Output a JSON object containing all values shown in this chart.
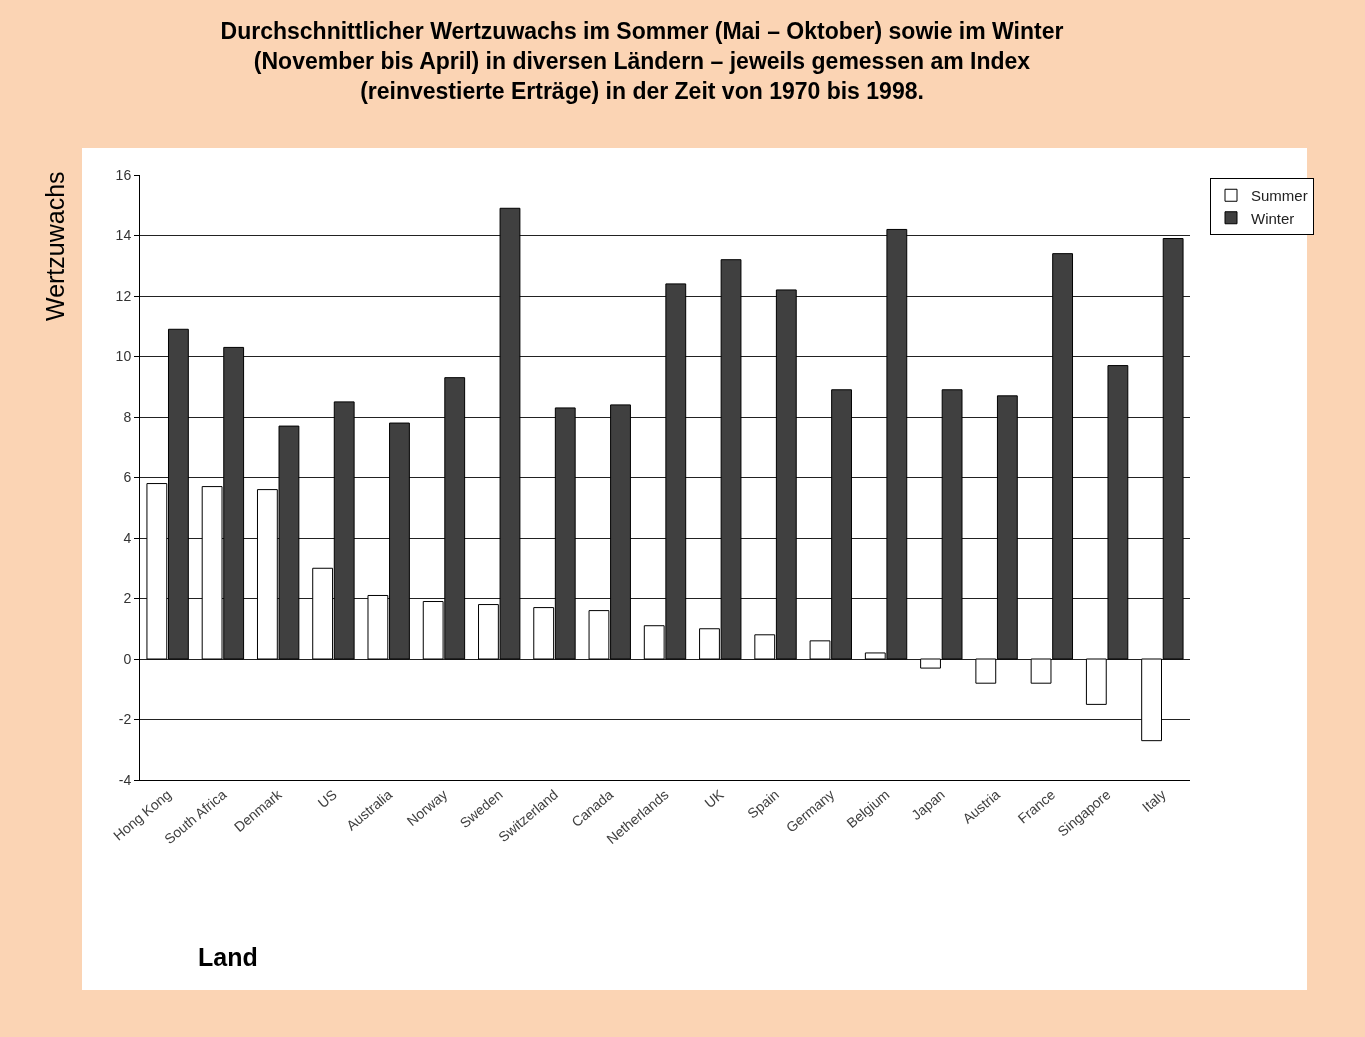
{
  "chart_data": {
    "type": "bar",
    "title": "Durchschnittlicher Wertzuwachs im Sommer (Mai – Oktober) sowie im Winter\n(November bis April) in diversen Ländern – jeweils gemessen am Index\n(reinvestierte Erträge) in der Zeit von 1970 bis 1998.",
    "xlabel": "Land",
    "ylabel": "Wertzuwachs",
    "categories": [
      "Hong Kong",
      "South Africa",
      "Denmark",
      "US",
      "Australia",
      "Norway",
      "Sweden",
      "Switzerland",
      "Canada",
      "Netherlands",
      "UK",
      "Spain",
      "Germany",
      "Belgium",
      "Japan",
      "Austria",
      "France",
      "Singapore",
      "Italy"
    ],
    "series": [
      {
        "name": "Summer",
        "color": "#ffffff",
        "values": [
          5.8,
          5.7,
          5.6,
          3.0,
          2.1,
          1.9,
          1.8,
          1.7,
          1.6,
          1.1,
          1.0,
          0.8,
          0.6,
          0.2,
          -0.3,
          -0.8,
          -0.8,
          -1.5,
          -2.7
        ]
      },
      {
        "name": "Winter",
        "color": "#404040",
        "values": [
          10.9,
          10.3,
          7.7,
          8.5,
          7.8,
          9.3,
          14.9,
          8.3,
          8.4,
          12.4,
          13.2,
          12.2,
          8.9,
          14.2,
          8.9,
          8.7,
          13.4,
          9.7,
          13.9
        ]
      }
    ],
    "ylim": [
      -4,
      16
    ],
    "yticks": [
      -4,
      -2,
      0,
      2,
      4,
      6,
      8,
      10,
      12,
      14,
      16
    ],
    "grid": "y",
    "legend": "top right"
  }
}
